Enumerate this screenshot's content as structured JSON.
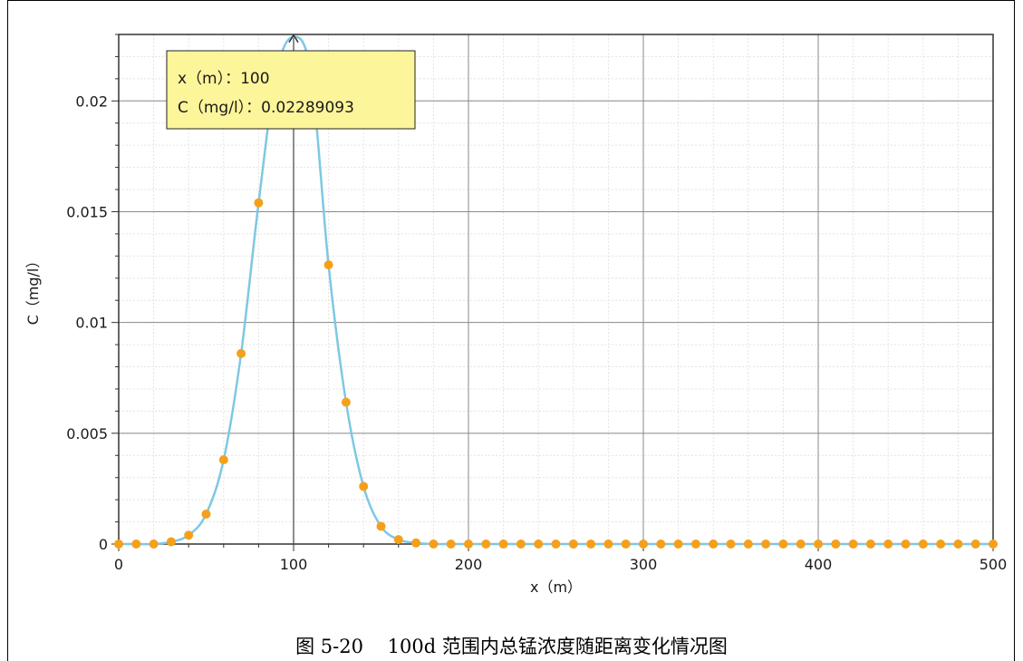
{
  "chart_data": {
    "type": "line",
    "xlabel": "x（m）",
    "ylabel": "C（mg/l）",
    "xlim": [
      0,
      500
    ],
    "ylim": [
      0,
      0.023
    ],
    "x_ticks": [
      0,
      100,
      200,
      300,
      400,
      500
    ],
    "x_tick_labels": [
      "0",
      "100",
      "200",
      "300",
      "400",
      "500"
    ],
    "y_ticks": [
      0,
      0.005,
      0.01,
      0.015,
      0.02
    ],
    "y_tick_labels": [
      "0",
      "0.005",
      "0.01",
      "0.015",
      "0.02"
    ],
    "grid": true,
    "line_color": "#7ec8e3",
    "marker_color": "#f5a01a",
    "x": [
      0,
      10,
      20,
      30,
      40,
      50,
      60,
      70,
      80,
      90,
      100,
      110,
      120,
      130,
      140,
      150,
      160,
      170,
      180,
      190,
      200,
      210,
      220,
      230,
      240,
      250,
      260,
      270,
      280,
      290,
      300,
      310,
      320,
      330,
      340,
      350,
      360,
      370,
      380,
      390,
      400,
      410,
      420,
      430,
      440,
      450,
      460,
      470,
      480,
      490,
      500
    ],
    "y": [
      0,
      0,
      0,
      0.0001,
      0.0004,
      0.00135,
      0.0038,
      0.0086,
      0.0154,
      0.0212,
      0.02289093,
      0.0212,
      0.0126,
      0.0064,
      0.0026,
      0.0008,
      0.0002,
      5e-05,
      0,
      0,
      0,
      0,
      0,
      0,
      0,
      0,
      0,
      0,
      0,
      0,
      0,
      0,
      0,
      0,
      0,
      0,
      0,
      0,
      0,
      0,
      0,
      0,
      0,
      0,
      0,
      0,
      0,
      0,
      0,
      0,
      0
    ],
    "tooltip": {
      "line1": "x（m）：100",
      "line2": "C（mg/l）：0.02289093"
    }
  },
  "caption": "图 5-20    100d 范围内总锰浓度随距离变化情况图"
}
